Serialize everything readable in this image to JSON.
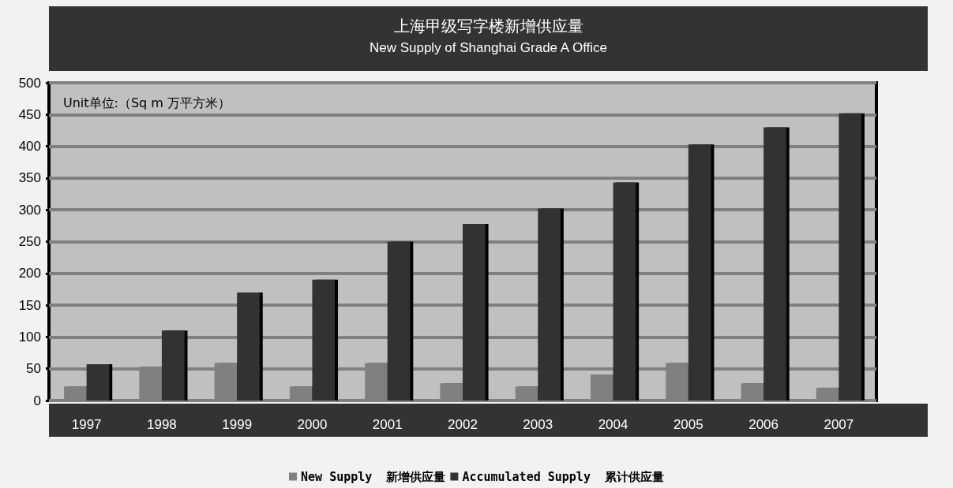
{
  "chart_data": {
    "type": "bar",
    "title": "上海甲级写字楼新增供应量",
    "subtitle": "New Supply of Shanghai Grade A Office",
    "annotations": [
      "Unit单位:（Sq m 万平方米）"
    ],
    "categories": [
      "1997",
      "1998",
      "1999",
      "2000",
      "2001",
      "2002",
      "2003",
      "2004",
      "2005",
      "2006",
      "2007"
    ],
    "series": [
      {
        "name": "New Supply  新增供应量",
        "color": "#808080",
        "values": [
          22,
          53,
          59,
          22,
          59,
          27,
          22,
          41,
          59,
          27,
          20
        ]
      },
      {
        "name": "Accumulated Supply  累计供应量",
        "color": "#333333",
        "values": [
          57,
          110,
          170,
          190,
          250,
          278,
          302,
          343,
          403,
          430,
          452
        ]
      }
    ],
    "ylim": [
      0,
      500
    ],
    "yticks": [
      0,
      50,
      100,
      150,
      200,
      250,
      300,
      350,
      400,
      450,
      500
    ],
    "grid": "y",
    "legend": "bottom"
  }
}
